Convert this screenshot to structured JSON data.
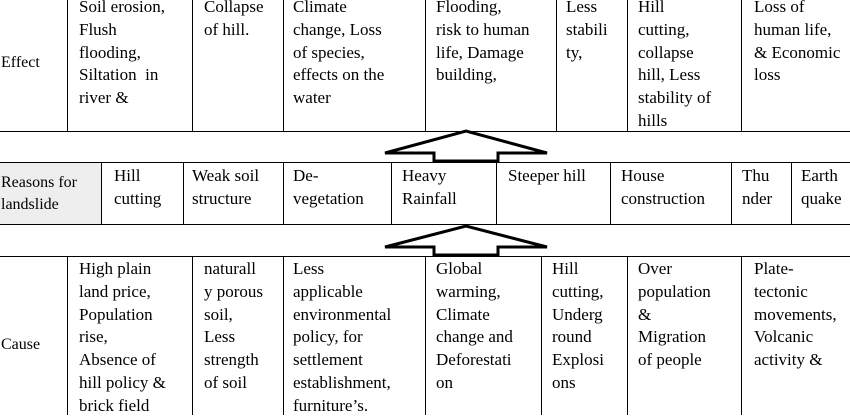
{
  "effect": {
    "label": "Effect",
    "cells": [
      "Soil erosion,\nFlush\nflooding,\nSiltation  in\nriver &",
      "Collapse\nof hill.",
      "Climate\nchange, Loss\nof species,\neffects on the\nwater",
      "Flooding,\nrisk to human\nlife, Damage\nbuilding,",
      "Less\nstabili\nty,",
      "Hill\ncutting,\ncollapse\nhill, Less\nstability of\nhills",
      "Loss of\nhuman life,\n& Economic\nloss"
    ]
  },
  "reasons": {
    "label": "Reasons for\nlandslide",
    "cells": [
      "Hill\ncutting",
      "Weak soil\nstructure",
      "De-\nvegetation",
      "Heavy\nRainfall",
      "Steeper hill",
      "House\nconstruction",
      "Thu\nnder",
      "Earth\nquake"
    ]
  },
  "cause": {
    "label": "Cause",
    "cells": [
      "High plain\nland price,\nPopulation\nrise,\nAbsence of\nhill policy &\nbrick field",
      "naturall\ny porous\nsoil,\nLess\nstrength\nof soil",
      "Less\napplicable\nenvironmental\npolicy, for\nsettlement\nestablishment,\nfurniture’s.",
      "Global\nwarming,\nClimate\nchange and\nDeforestati\non",
      "Hill\ncutting,\nUnderg\nround\nExplosi\nons",
      "Over\npopulation\n&\nMigration\nof people",
      "Plate-\ntectonic\nmovements,\nVolcanic\nactivity &"
    ]
  }
}
